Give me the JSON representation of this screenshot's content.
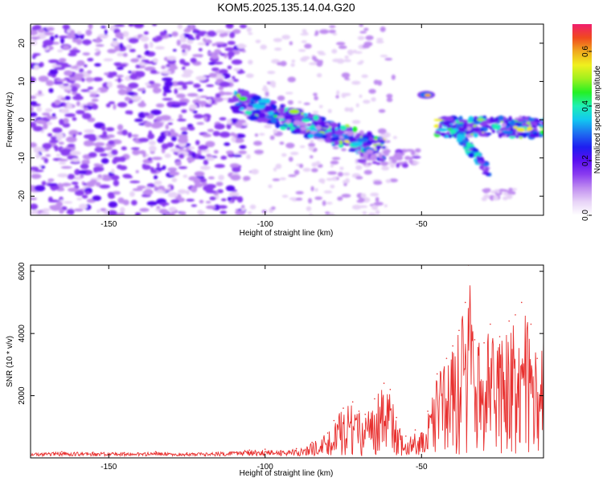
{
  "figure": {
    "title": "KOM5.2025.135.14.04.G20"
  },
  "colors": {
    "snr_line": "#e8302f",
    "background": "#ffffff",
    "axis": "#000000",
    "colormap": [
      "#ffffff",
      "#e7d3f7",
      "#c08df0",
      "#8a3cf0",
      "#5a0ff0",
      "#1e1ef0",
      "#1e6ef0",
      "#12c8f0",
      "#1ef0b4",
      "#24f024",
      "#a0f01e",
      "#f0f01e",
      "#f0aa1e",
      "#f04a1e",
      "#f01e6e"
    ]
  },
  "chart_data": [
    {
      "type": "heatmap",
      "xlabel": "Height of straight line (km)",
      "ylabel": "Frequency (Hz)",
      "xlim": [
        -175,
        -11
      ],
      "ylim": [
        -25,
        25
      ],
      "xticks": [
        -150,
        -100,
        -50
      ],
      "yticks": [
        20,
        10,
        0,
        -10,
        -20
      ],
      "colorbar": {
        "label": "Normalized spectral amplitude",
        "range": [
          0.0,
          0.7
        ],
        "ticks": [
          "0.0",
          "0.2",
          "0.4",
          "0.6"
        ]
      },
      "dense_regions": [
        {
          "x": [
            -175,
            -110
          ],
          "y": [
            -25,
            25
          ],
          "amplitude": "low (~0.05-0.15)"
        },
        {
          "x": [
            -110,
            -65
          ],
          "y": [
            -10,
            7
          ],
          "amplitude": "high, band decreasing from ~5 Hz to ~-8 Hz"
        },
        {
          "x": [
            -52,
            -45
          ],
          "y": [
            5,
            8
          ],
          "amplitude": "peak (~0.6)"
        },
        {
          "x": [
            -42,
            -11
          ],
          "y": [
            -15,
            2
          ],
          "amplitude": "medium to high"
        }
      ]
    },
    {
      "type": "line",
      "xlabel": "Height of straight line (km)",
      "ylabel": "SNR (10 * v/v)",
      "xlim": [
        -175,
        -11
      ],
      "ylim": [
        0,
        6200
      ],
      "xticks": [
        -150,
        -100,
        -50
      ],
      "yticks": [
        2000,
        4000,
        6000
      ],
      "series": [
        {
          "x": [
            -175,
            -165,
            -155,
            -145,
            -135,
            -125,
            -115,
            -105,
            -100,
            -95,
            -90,
            -85,
            -80,
            -78,
            -75,
            -72,
            -70,
            -68,
            -65,
            -62,
            -60,
            -58,
            -55,
            -52,
            -50,
            -48,
            -45,
            -42,
            -40,
            -38,
            -36,
            -35,
            -33,
            -30,
            -28,
            -25,
            -22,
            -20,
            -18,
            -15,
            -13,
            -11
          ],
          "values": [
            150,
            200,
            180,
            170,
            200,
            160,
            180,
            250,
            280,
            230,
            300,
            500,
            800,
            1200,
            1600,
            1800,
            1500,
            1400,
            1900,
            2400,
            2200,
            1300,
            700,
            900,
            800,
            1500,
            2700,
            3200,
            3600,
            4100,
            5000,
            6200,
            3800,
            3700,
            4300,
            3900,
            4400,
            4600,
            5000,
            4300,
            3200,
            4000
          ]
        }
      ]
    }
  ]
}
